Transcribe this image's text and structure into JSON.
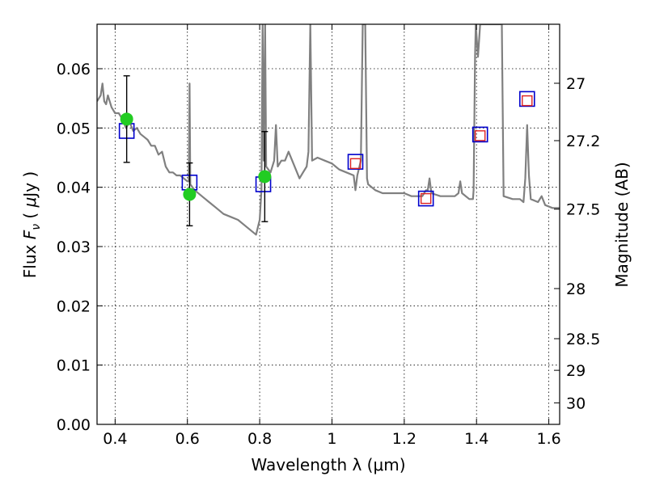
{
  "chart_data": {
    "type": "scatter",
    "title": "",
    "xlabel": "Wavelength  λ (μm)",
    "ylabel": "Flux  F_ν  ( μJy )",
    "ylabel_parts": {
      "pre": "Flux  ",
      "sym": "F",
      "sub": "ν",
      "mid": "  (  ",
      "mu": "μ",
      "post": "Jy )"
    },
    "y2label": "Magnitude (AB)",
    "xlim": [
      0.35,
      1.63
    ],
    "ylim": [
      0.0,
      0.0675
    ],
    "grid": true,
    "xticks": [
      {
        "v": 0.4,
        "label": "0.4"
      },
      {
        "v": 0.6,
        "label": "0.6"
      },
      {
        "v": 0.8,
        "label": "0.8"
      },
      {
        "v": 1.0,
        "label": "1"
      },
      {
        "v": 1.2,
        "label": "1.2"
      },
      {
        "v": 1.4,
        "label": "1.4"
      },
      {
        "v": 1.6,
        "label": "1.6"
      }
    ],
    "yticks": [
      {
        "v": 0.0,
        "label": "0.00"
      },
      {
        "v": 0.01,
        "label": "0.01"
      },
      {
        "v": 0.02,
        "label": "0.02"
      },
      {
        "v": 0.03,
        "label": "0.03"
      },
      {
        "v": 0.04,
        "label": "0.04"
      },
      {
        "v": 0.05,
        "label": "0.05"
      },
      {
        "v": 0.06,
        "label": "0.06"
      }
    ],
    "y2ticks": [
      {
        "mag": 27,
        "label": "27"
      },
      {
        "mag": 27.2,
        "label": "27.2"
      },
      {
        "mag": 27.5,
        "label": "27.5"
      },
      {
        "mag": 28,
        "label": "28"
      },
      {
        "mag": 28.5,
        "label": "28.5"
      },
      {
        "mag": 29,
        "label": "29"
      },
      {
        "mag": 30,
        "label": "30"
      }
    ],
    "spectrum": {
      "color": "#808080",
      "points": [
        [
          0.35,
          0.0545
        ],
        [
          0.36,
          0.0555
        ],
        [
          0.365,
          0.0575
        ],
        [
          0.37,
          0.0545
        ],
        [
          0.375,
          0.054
        ],
        [
          0.38,
          0.0555
        ],
        [
          0.39,
          0.0535
        ],
        [
          0.4,
          0.0525
        ],
        [
          0.41,
          0.0525
        ],
        [
          0.42,
          0.0515
        ],
        [
          0.43,
          0.05
        ],
        [
          0.44,
          0.051
        ],
        [
          0.45,
          0.0495
        ],
        [
          0.46,
          0.05
        ],
        [
          0.47,
          0.049
        ],
        [
          0.48,
          0.0485
        ],
        [
          0.49,
          0.048
        ],
        [
          0.5,
          0.047
        ],
        [
          0.51,
          0.047
        ],
        [
          0.52,
          0.0455
        ],
        [
          0.53,
          0.046
        ],
        [
          0.54,
          0.0435
        ],
        [
          0.55,
          0.0425
        ],
        [
          0.56,
          0.0425
        ],
        [
          0.57,
          0.042
        ],
        [
          0.58,
          0.042
        ],
        [
          0.59,
          0.0415
        ],
        [
          0.6,
          0.041
        ],
        [
          0.604,
          0.041
        ],
        [
          0.606,
          0.0575
        ],
        [
          0.608,
          0.0405
        ],
        [
          0.62,
          0.0395
        ],
        [
          0.64,
          0.0385
        ],
        [
          0.66,
          0.0375
        ],
        [
          0.68,
          0.0365
        ],
        [
          0.7,
          0.0355
        ],
        [
          0.72,
          0.035
        ],
        [
          0.74,
          0.0345
        ],
        [
          0.76,
          0.0335
        ],
        [
          0.78,
          0.0325
        ],
        [
          0.79,
          0.032
        ],
        [
          0.8,
          0.0345
        ],
        [
          0.805,
          0.0395
        ],
        [
          0.808,
          0.0675
        ],
        [
          0.811,
          0.0445
        ],
        [
          0.815,
          0.0675
        ],
        [
          0.818,
          0.0435
        ],
        [
          0.83,
          0.0425
        ],
        [
          0.84,
          0.0445
        ],
        [
          0.845,
          0.0505
        ],
        [
          0.85,
          0.0435
        ],
        [
          0.86,
          0.0445
        ],
        [
          0.87,
          0.0445
        ],
        [
          0.88,
          0.046
        ],
        [
          0.89,
          0.0445
        ],
        [
          0.9,
          0.043
        ],
        [
          0.91,
          0.0415
        ],
        [
          0.92,
          0.0425
        ],
        [
          0.93,
          0.0435
        ],
        [
          0.935,
          0.046
        ],
        [
          0.94,
          0.0675
        ],
        [
          0.945,
          0.0445
        ],
        [
          0.96,
          0.045
        ],
        [
          0.98,
          0.0445
        ],
        [
          1.0,
          0.044
        ],
        [
          1.01,
          0.0435
        ],
        [
          1.02,
          0.043
        ],
        [
          1.04,
          0.0425
        ],
        [
          1.06,
          0.042
        ],
        [
          1.065,
          0.0395
        ],
        [
          1.07,
          0.042
        ],
        [
          1.08,
          0.0445
        ],
        [
          1.085,
          0.0675
        ],
        [
          1.092,
          0.0675
        ],
        [
          1.097,
          0.0415
        ],
        [
          1.1,
          0.0405
        ],
        [
          1.12,
          0.0395
        ],
        [
          1.14,
          0.039
        ],
        [
          1.16,
          0.039
        ],
        [
          1.2,
          0.039
        ],
        [
          1.22,
          0.0385
        ],
        [
          1.25,
          0.0385
        ],
        [
          1.26,
          0.0395
        ],
        [
          1.265,
          0.0395
        ],
        [
          1.27,
          0.0415
        ],
        [
          1.275,
          0.039
        ],
        [
          1.3,
          0.0385
        ],
        [
          1.32,
          0.0385
        ],
        [
          1.34,
          0.0385
        ],
        [
          1.35,
          0.039
        ],
        [
          1.355,
          0.041
        ],
        [
          1.36,
          0.039
        ],
        [
          1.38,
          0.038
        ],
        [
          1.39,
          0.038
        ],
        [
          1.392,
          0.0395
        ],
        [
          1.396,
          0.062
        ],
        [
          1.398,
          0.0675
        ],
        [
          1.404,
          0.062
        ],
        [
          1.41,
          0.0675
        ],
        [
          1.42,
          0.0675
        ],
        [
          1.43,
          0.0675
        ],
        [
          1.44,
          0.0675
        ],
        [
          1.45,
          0.0675
        ],
        [
          1.46,
          0.0675
        ],
        [
          1.47,
          0.0675
        ],
        [
          1.475,
          0.0385
        ],
        [
          1.5,
          0.038
        ],
        [
          1.52,
          0.038
        ],
        [
          1.53,
          0.0375
        ],
        [
          1.535,
          0.0415
        ],
        [
          1.54,
          0.0505
        ],
        [
          1.545,
          0.042
        ],
        [
          1.55,
          0.038
        ],
        [
          1.57,
          0.0375
        ],
        [
          1.58,
          0.0385
        ],
        [
          1.59,
          0.037
        ],
        [
          1.61,
          0.0365
        ],
        [
          1.63,
          0.0365
        ]
      ]
    },
    "series": [
      {
        "marker": "circle",
        "color": "#22cc22",
        "points": [
          {
            "x": 0.432,
            "y": 0.0515,
            "err": 0.0073
          },
          {
            "x": 0.606,
            "y": 0.0388,
            "err": 0.0053
          },
          {
            "x": 0.814,
            "y": 0.0418,
            "err": 0.0076
          }
        ]
      },
      {
        "marker": "square-open",
        "color": "#0000cc",
        "points": [
          {
            "x": 0.432,
            "y": 0.0495
          },
          {
            "x": 0.606,
            "y": 0.0408
          },
          {
            "x": 0.81,
            "y": 0.0405
          },
          {
            "x": 1.065,
            "y": 0.0443
          },
          {
            "x": 1.26,
            "y": 0.0381
          },
          {
            "x": 1.41,
            "y": 0.0489
          },
          {
            "x": 1.54,
            "y": 0.0549
          }
        ]
      },
      {
        "marker": "square-open-small",
        "color": "#dd2222",
        "points": [
          {
            "x": 1.065,
            "y": 0.044
          },
          {
            "x": 1.26,
            "y": 0.0381
          },
          {
            "x": 1.41,
            "y": 0.0487
          },
          {
            "x": 1.54,
            "y": 0.0546
          }
        ]
      }
    ]
  }
}
